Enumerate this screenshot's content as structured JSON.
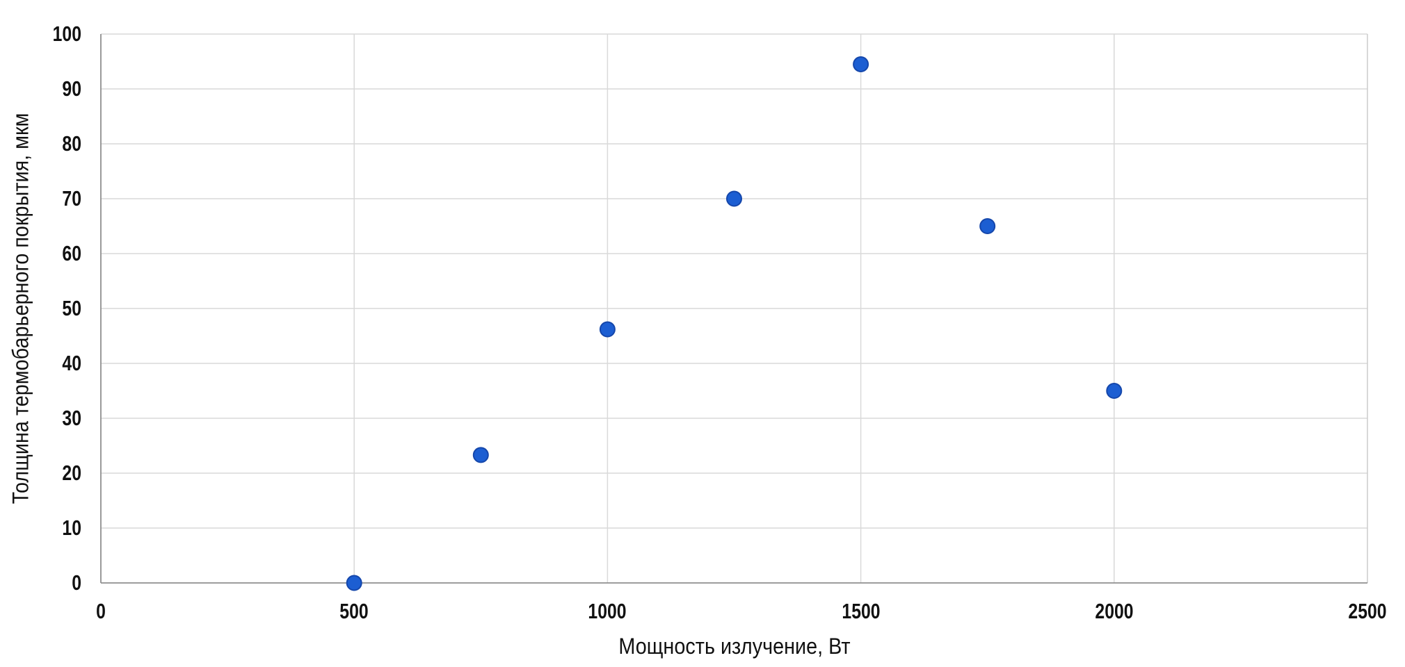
{
  "page": {
    "background": "#ffffff"
  },
  "chart_data": {
    "type": "scatter",
    "title": "",
    "xlabel": "Мощность излучение, Вт",
    "ylabel": "Толщина термобарьерного покрытия, мкм",
    "points": [
      {
        "x": 500,
        "y": 0
      },
      {
        "x": 750,
        "y": 23.3
      },
      {
        "x": 1000,
        "y": 46.2
      },
      {
        "x": 1250,
        "y": 70
      },
      {
        "x": 1500,
        "y": 94.5
      },
      {
        "x": 1750,
        "y": 65
      },
      {
        "x": 2000,
        "y": 35
      }
    ],
    "xlim": [
      0,
      2500
    ],
    "ylim": [
      0,
      100
    ],
    "x_ticks": [
      0,
      500,
      1000,
      1500,
      2000,
      2500
    ],
    "y_ticks": [
      0,
      10,
      20,
      30,
      40,
      50,
      60,
      70,
      80,
      90,
      100
    ],
    "grid": true,
    "legend": "none",
    "marker": "circle",
    "colors": {
      "marker_fill": "#1c5ed2",
      "marker_edge": "#1547ab",
      "gridline": "#d9d9d9",
      "plot_border": "#cccccc",
      "axis_line": "#8f8f8f",
      "text": "#111111",
      "background": "#ffffff"
    }
  }
}
